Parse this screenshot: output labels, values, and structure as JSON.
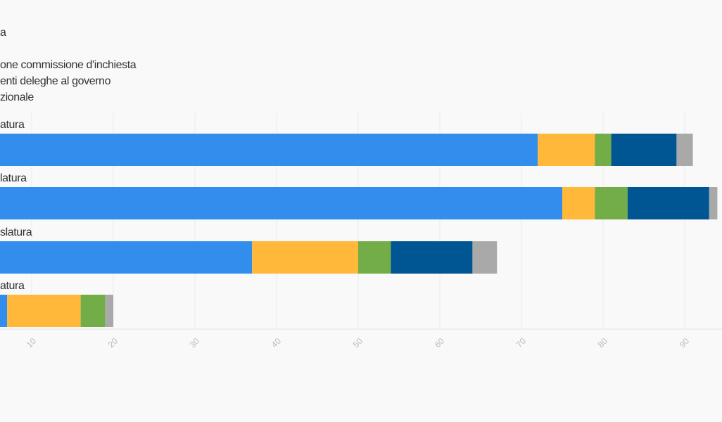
{
  "chart_data": {
    "type": "bar",
    "orientation": "horizontal",
    "stacked": true,
    "categories": [
      "atura",
      "latura",
      "slatura",
      "atura"
    ],
    "series": [
      {
        "name": "a",
        "color": "#338ded",
        "values": [
          72,
          75,
          37,
          7
        ]
      },
      {
        "name": null,
        "color": "#ffb83a",
        "values": [
          7,
          4,
          13,
          9
        ]
      },
      {
        "name": "one commissione d'inchiesta",
        "color": "#72ad48",
        "values": [
          2,
          4,
          4,
          3
        ]
      },
      {
        "name": "enti deleghe al governo",
        "color": "#005593",
        "values": [
          8,
          10,
          10,
          0
        ]
      },
      {
        "name": "zionale",
        "color": "#a9a9a9",
        "values": [
          2,
          1,
          3,
          1
        ]
      }
    ],
    "xlim": [
      0,
      95
    ],
    "xticks": [
      10,
      20,
      30,
      40,
      50,
      60,
      70,
      80,
      90
    ],
    "grid": true
  }
}
